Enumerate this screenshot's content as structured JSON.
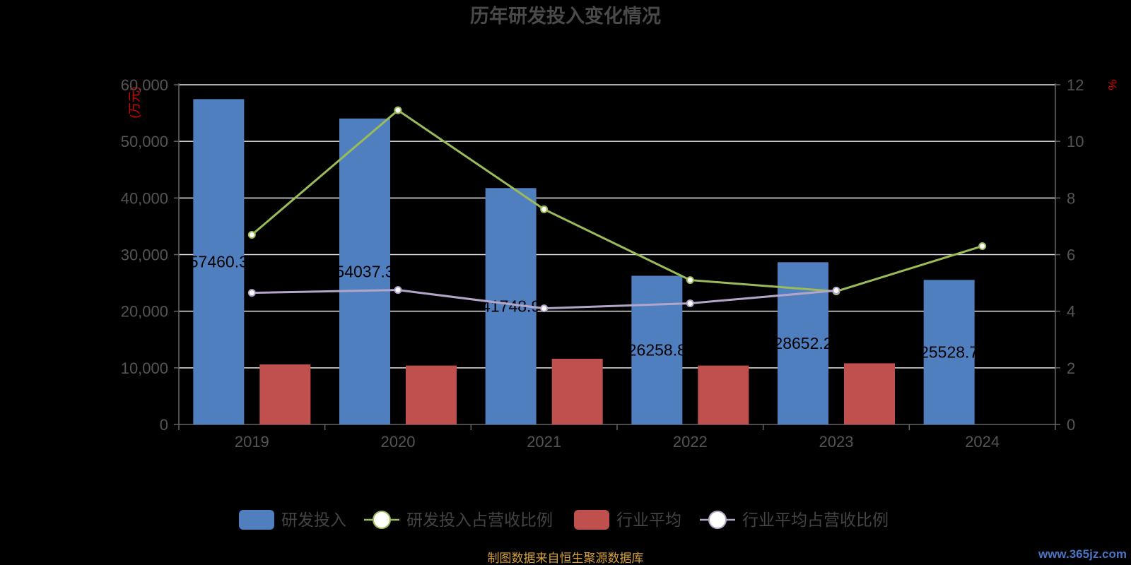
{
  "chart_data": {
    "type": "bar",
    "title": "历年研发投入变化情况",
    "categories": [
      "2019",
      "2020",
      "2021",
      "2022",
      "2023",
      "2024"
    ],
    "y_left": {
      "unit": "(万元)",
      "range": [
        0,
        60000
      ],
      "ticks": [
        "0",
        "10,000",
        "20,000",
        "30,000",
        "40,000",
        "50,000",
        "60,000"
      ]
    },
    "y_right": {
      "unit": "%",
      "range": [
        0,
        12
      ],
      "ticks": [
        "0",
        "2",
        "4",
        "6",
        "8",
        "10",
        "12"
      ]
    },
    "series": [
      {
        "name": "研发投入",
        "type": "bar",
        "axis": "left",
        "color": "#4f7fbf",
        "values": [
          57460.3,
          54037.3,
          41748.9,
          26258.8,
          28652.2,
          25528.7
        ],
        "labels": [
          "57460.3",
          "54037.3",
          "41748.9",
          "26258.8",
          "28652.2",
          "25528.7"
        ]
      },
      {
        "name": "研发投入占营收比例",
        "type": "line",
        "axis": "right",
        "color": "#9bbb59",
        "values": [
          6.7,
          11.1,
          7.6,
          5.1,
          4.7,
          6.3
        ]
      },
      {
        "name": "行业平均",
        "type": "bar",
        "axis": "left",
        "color": "#c0504d",
        "values": [
          10600,
          10400,
          11600,
          10400,
          10800,
          null
        ]
      },
      {
        "name": "行业平均占营收比例",
        "type": "line",
        "axis": "right",
        "color": "#b3a5c8",
        "values": [
          4.65,
          4.75,
          4.1,
          4.28,
          4.73,
          null
        ]
      }
    ],
    "grid": true,
    "legend_position": "bottom"
  },
  "footer": {
    "source": "制图数据来自恒生聚源数据库",
    "watermark": "www.365jz.com"
  }
}
